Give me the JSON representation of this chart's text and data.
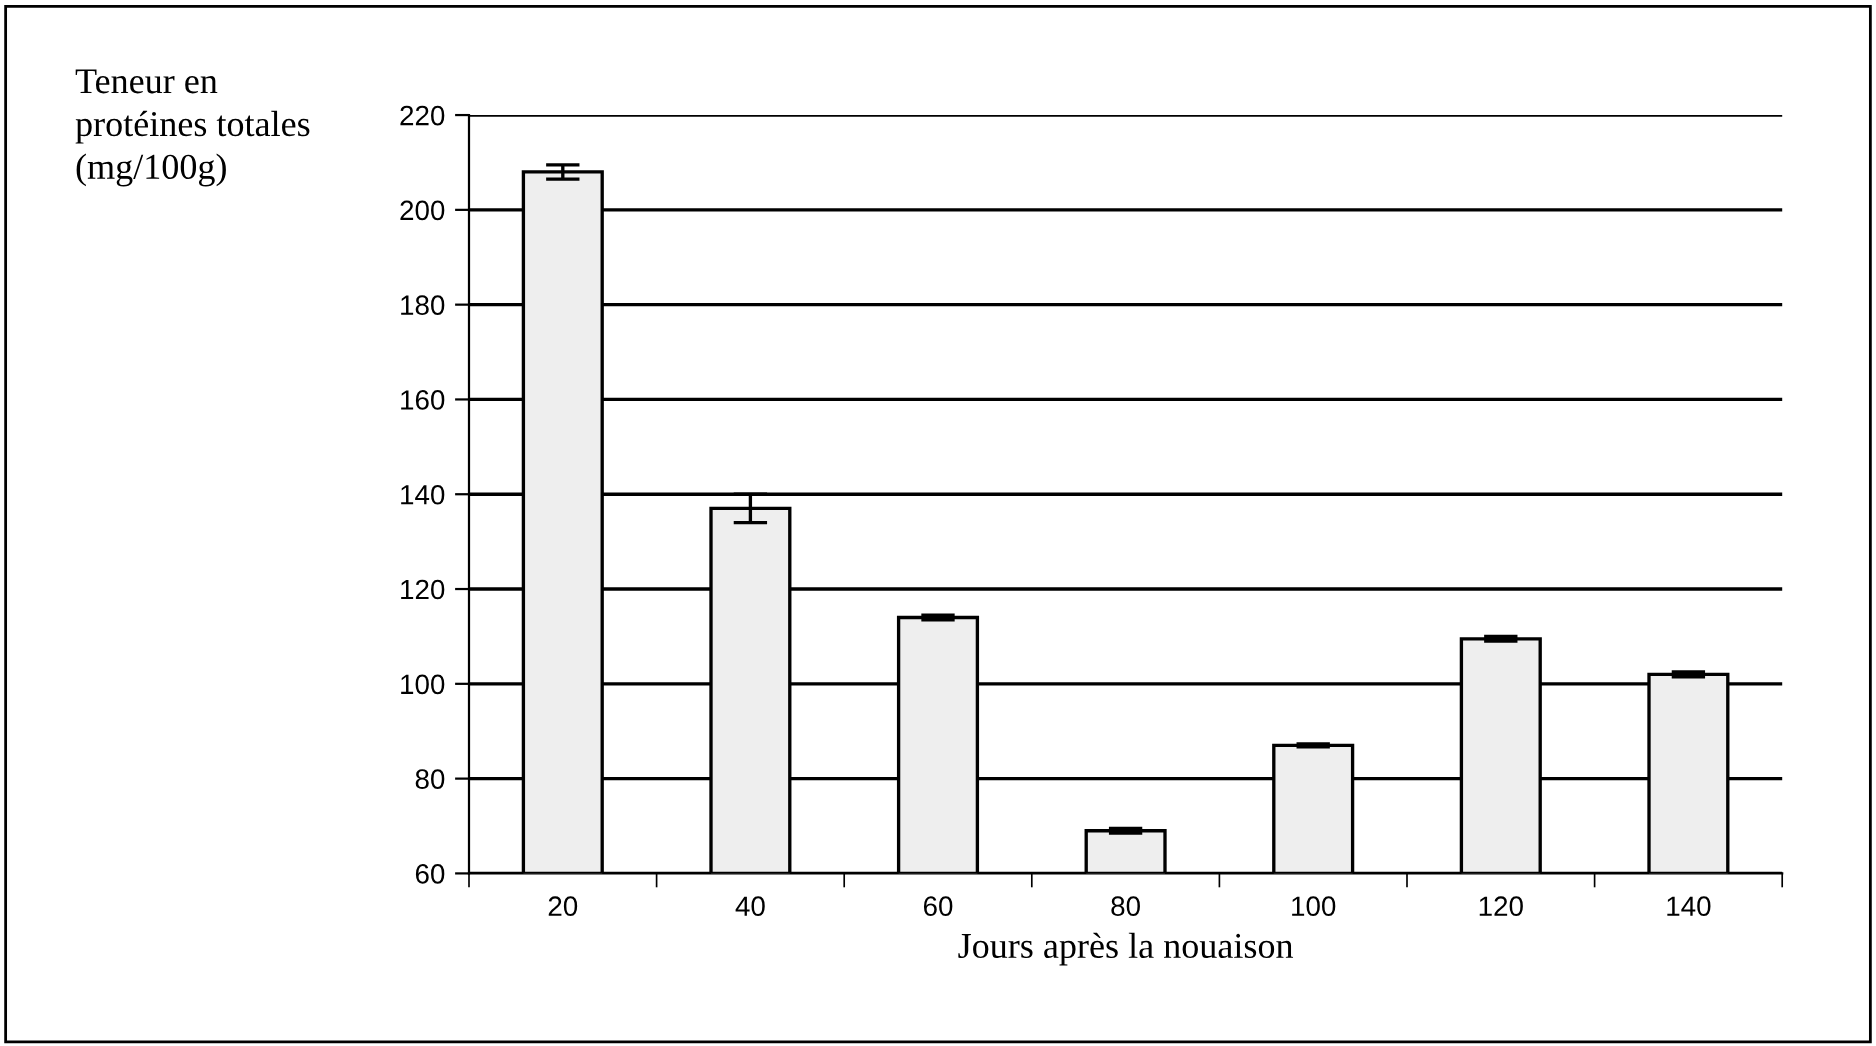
{
  "chart_data": {
    "type": "bar",
    "xlabel": "Jours après la nouaison",
    "ylabel": "Teneur en\nprotéines totales\n(mg/100g)",
    "categories": [
      "20",
      "40",
      "60",
      "80",
      "100",
      "120",
      "140"
    ],
    "values": [
      208,
      137,
      114,
      69,
      87,
      109.5,
      102
    ],
    "errors": [
      1.5,
      3,
      0.5,
      0.5,
      0.3,
      0.5,
      0.5
    ],
    "color": "#eeeeee",
    "ylim": [
      60,
      220
    ],
    "yticks": [
      60,
      80,
      100,
      120,
      140,
      160,
      180,
      200,
      220
    ],
    "grid": "y"
  }
}
